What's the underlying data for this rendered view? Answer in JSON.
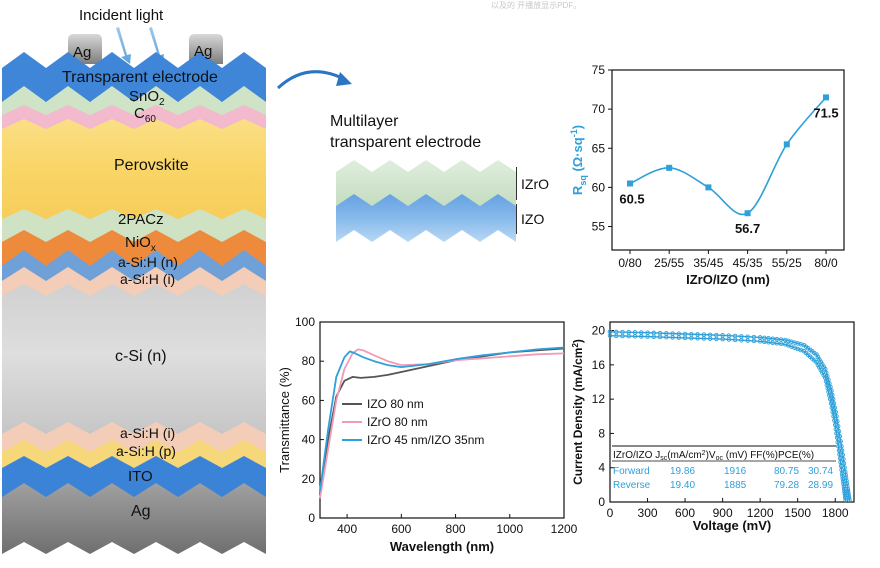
{
  "header_faint_text": "以及的 开播放显示PDF。",
  "stack": {
    "incident_light": "Incident light",
    "ag_contact_left": "Ag",
    "ag_contact_right": "Ag",
    "layers": {
      "transparent_electrode": "Transparent electrode",
      "sno2": "SnO",
      "sno2_sub": "2",
      "c60": "C",
      "c60_sub": "60",
      "perovskite": "Perovskite",
      "pacz": "2PACz",
      "niox": "NiO",
      "niox_sub": "x",
      "asih_n": "a-Si:H (n)",
      "asih_i_top": "a-Si:H (i)",
      "csi_n": "c-Si (n)",
      "asih_i_bottom": "a-Si:H (i)",
      "asih_p": "a-Si:H (p)",
      "ito": "ITO",
      "ag_bottom": "Ag"
    }
  },
  "multilayer": {
    "title_line1": "Multilayer",
    "title_line2": "transparent electrode",
    "izro_label": "IZrO",
    "izo_label": "IZO"
  },
  "colors": {
    "electrode_blue": "#3f86d8",
    "sno2_green": "#cfe3c6",
    "c60_pink": "#f3b9cc",
    "perovskite_yellow": "#f8cf5a",
    "pacz_green": "#cfe2c3",
    "niox_orange": "#ee8a3c",
    "asih_blue": "#6fa0d8",
    "asih_peach": "#f4cdb8",
    "csi_gray": "#c9c9c9",
    "asih_p_yellow": "#f6d77a",
    "ito_blue": "#3a83d6",
    "ag_gray": "#8c8c8c",
    "chart_blue": "#2ea0da",
    "chart_pink": "#f29ab7",
    "chart_gray": "#555555"
  },
  "chart_data": [
    {
      "type": "line",
      "ylabel": "R",
      "ylabel_sub": "sq",
      "ylabel_units": " (Ω·sq",
      "ylabel_units_sup": "-1",
      "ylabel_close": ")",
      "xlabel": "IZrO/IZO (nm)",
      "categories": [
        "0/80",
        "25/55",
        "35/45",
        "45/35",
        "55/25",
        "80/0"
      ],
      "values": [
        60.5,
        62.5,
        60.0,
        56.7,
        65.5,
        71.5
      ],
      "ylim": [
        52,
        75
      ],
      "yticks": [
        55,
        60,
        65,
        70,
        75
      ],
      "annotations": [
        {
          "index": 0,
          "text": "60.5"
        },
        {
          "index": 3,
          "text": "56.7"
        },
        {
          "index": 5,
          "text": "71.5"
        }
      ]
    },
    {
      "type": "line",
      "xlabel": "Wavelength (nm)",
      "ylabel": "Transmittance (%)",
      "xlim": [
        300,
        1200
      ],
      "ylim": [
        0,
        100
      ],
      "xticks": [
        400,
        600,
        800,
        1000,
        1200
      ],
      "yticks": [
        0,
        20,
        40,
        60,
        80,
        100
      ],
      "legend": "center-left",
      "series": [
        {
          "name": "IZO 80 nm",
          "color": "#555555",
          "x": [
            300,
            330,
            360,
            390,
            420,
            450,
            500,
            550,
            600,
            700,
            800,
            900,
            1000,
            1100,
            1200
          ],
          "y": [
            12,
            40,
            62,
            70,
            72,
            71.5,
            72,
            73,
            74.5,
            77.5,
            80.5,
            82.5,
            84.5,
            85.5,
            86.5
          ]
        },
        {
          "name": "IZrO 80 nm",
          "color": "#f29ab7",
          "x": [
            300,
            330,
            360,
            390,
            420,
            440,
            460,
            500,
            550,
            600,
            700,
            800,
            900,
            1000,
            1100,
            1200
          ],
          "y": [
            10,
            35,
            60,
            76,
            84,
            86,
            85.5,
            83,
            80,
            78,
            78.5,
            80.5,
            81.5,
            82.5,
            83.5,
            84
          ]
        },
        {
          "name": "IZrO 45 nm/IZO 35nm",
          "color": "#2ea0da",
          "x": [
            300,
            330,
            360,
            390,
            410,
            430,
            460,
            500,
            550,
            600,
            700,
            800,
            900,
            1000,
            1100,
            1200
          ],
          "y": [
            14,
            45,
            72,
            82,
            85,
            84,
            82,
            80,
            78,
            77,
            78.5,
            81,
            83,
            84.5,
            86,
            87
          ]
        }
      ]
    },
    {
      "type": "line",
      "xlabel": "Voltage (mV)",
      "ylabel": "Current Density (mA/cm",
      "ylabel_sup": "2",
      "ylabel_close": ")",
      "xlim": [
        0,
        1950
      ],
      "ylim": [
        0,
        21
      ],
      "xticks": [
        0,
        300,
        600,
        900,
        1200,
        1500,
        1800
      ],
      "yticks": [
        0,
        4,
        8,
        12,
        16,
        20
      ],
      "series": [
        {
          "name": "Forward",
          "color": "#2ea0da",
          "x": [
            0,
            300,
            600,
            900,
            1200,
            1400,
            1550,
            1650,
            1720,
            1770,
            1810,
            1850,
            1880,
            1900,
            1916
          ],
          "y": [
            19.86,
            19.75,
            19.6,
            19.45,
            19.2,
            18.9,
            18.3,
            17.2,
            15.5,
            13.0,
            10.0,
            6.5,
            3.5,
            1.5,
            0
          ]
        },
        {
          "name": "Reverse",
          "color": "#2ea0da",
          "x": [
            0,
            300,
            600,
            900,
            1200,
            1400,
            1550,
            1650,
            1720,
            1760,
            1800,
            1830,
            1855,
            1872,
            1885
          ],
          "y": [
            19.4,
            19.3,
            19.15,
            19.0,
            18.75,
            18.4,
            17.6,
            16.3,
            14.5,
            12.0,
            9.0,
            6.0,
            3.3,
            1.5,
            0
          ]
        }
      ],
      "table": {
        "headers": [
          "IZrO/IZO",
          "J",
          "sc",
          "(mA/cm",
          "2",
          ")V",
          "oc",
          "(mV)",
          "FF(%)",
          "PCE(%)"
        ],
        "rows": [
          [
            "Forward",
            "19.86",
            "1916",
            "80.75",
            "30.74"
          ],
          [
            "Reverse",
            "19.40",
            "1885",
            "79.28",
            "28.99"
          ]
        ]
      }
    }
  ]
}
